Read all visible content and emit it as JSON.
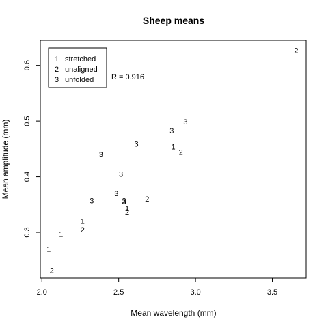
{
  "chart_data": {
    "type": "scatter",
    "title": "Sheep means",
    "xlabel": "Mean wavelength (mm)",
    "ylabel": "Mean amplitude (mm)",
    "xlim": [
      1.99,
      3.72
    ],
    "ylim": [
      0.2178,
      0.645
    ],
    "xticks": [
      2.0,
      2.5,
      3.0,
      3.5
    ],
    "xtick_labels": [
      "2.0",
      "2.5",
      "3.0",
      "3.5"
    ],
    "yticks": [
      0.3,
      0.4,
      0.5,
      0.6
    ],
    "ytick_labels": [
      "0.3",
      "0.4",
      "0.5",
      "0.6"
    ],
    "grid": false,
    "legend": {
      "position": "top-left",
      "entries": [
        {
          "symbol": "1",
          "label": "stretched"
        },
        {
          "symbol": "2",
          "label": "unaligned"
        },
        {
          "symbol": "3",
          "label": "unfolded"
        }
      ]
    },
    "annotation": "R = 0.916",
    "points": [
      {
        "x": 3.655,
        "y": 0.627,
        "label": "2"
      },
      {
        "x": 2.935,
        "y": 0.499,
        "label": "3"
      },
      {
        "x": 2.845,
        "y": 0.483,
        "label": "3"
      },
      {
        "x": 2.615,
        "y": 0.459,
        "label": "3"
      },
      {
        "x": 2.855,
        "y": 0.454,
        "label": "1"
      },
      {
        "x": 2.905,
        "y": 0.444,
        "label": "2"
      },
      {
        "x": 2.385,
        "y": 0.44,
        "label": "3"
      },
      {
        "x": 2.515,
        "y": 0.405,
        "label": "3"
      },
      {
        "x": 2.485,
        "y": 0.37,
        "label": "3"
      },
      {
        "x": 2.685,
        "y": 0.36,
        "label": "2"
      },
      {
        "x": 2.325,
        "y": 0.357,
        "label": "3"
      },
      {
        "x": 2.535,
        "y": 0.357,
        "label": "3"
      },
      {
        "x": 2.535,
        "y": 0.355,
        "label": "3"
      },
      {
        "x": 2.555,
        "y": 0.343,
        "label": "1"
      },
      {
        "x": 2.555,
        "y": 0.337,
        "label": "2"
      },
      {
        "x": 2.265,
        "y": 0.32,
        "label": "1"
      },
      {
        "x": 2.265,
        "y": 0.305,
        "label": "2"
      },
      {
        "x": 2.125,
        "y": 0.297,
        "label": "1"
      },
      {
        "x": 2.045,
        "y": 0.27,
        "label": "1"
      },
      {
        "x": 2.065,
        "y": 0.232,
        "label": "2"
      }
    ]
  }
}
